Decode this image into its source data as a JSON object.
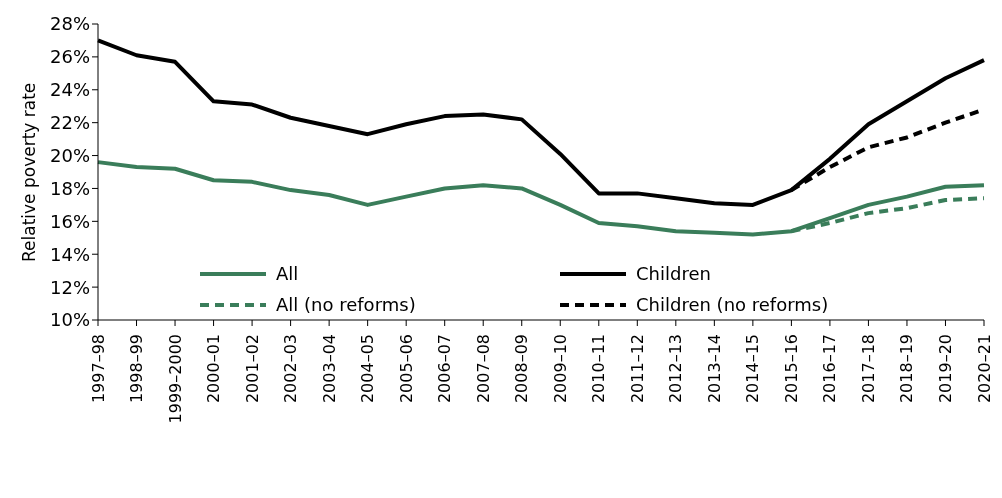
{
  "chart_data": {
    "type": "line",
    "ylabel": "Relative poverty rate",
    "categories": [
      "1997–98",
      "1998–99",
      "1999–2000",
      "2000–01",
      "2001–02",
      "2002–03",
      "2003–04",
      "2004–05",
      "2005–06",
      "2006–07",
      "2007–08",
      "2008–09",
      "2009–10",
      "2010–11",
      "2011–12",
      "2012–13",
      "2013–14",
      "2014–15",
      "2015–16",
      "2016–17",
      "2017–18",
      "2018–19",
      "2019–20",
      "2020–21"
    ],
    "ylim": [
      10,
      28
    ],
    "yticks": [
      {
        "value": 10,
        "label": "10%"
      },
      {
        "value": 12,
        "label": "12%"
      },
      {
        "value": 14,
        "label": "14%"
      },
      {
        "value": 16,
        "label": "16%"
      },
      {
        "value": 18,
        "label": "18%"
      },
      {
        "value": 20,
        "label": "20%"
      },
      {
        "value": 22,
        "label": "22%"
      },
      {
        "value": 24,
        "label": "24%"
      },
      {
        "value": 26,
        "label": "26%"
      },
      {
        "value": 28,
        "label": "28%"
      }
    ],
    "legend": "bottom",
    "marker": "none",
    "series": [
      {
        "name": "All",
        "color": "#3a7d5a",
        "line_style": "solid",
        "values": [
          19.6,
          19.3,
          19.2,
          18.5,
          18.4,
          17.9,
          17.6,
          17.0,
          17.5,
          18.0,
          18.2,
          18.0,
          17.0,
          15.9,
          15.7,
          15.4,
          15.3,
          15.2,
          15.4,
          16.2,
          17.0,
          17.5,
          18.1,
          18.2
        ]
      },
      {
        "name": "Children",
        "color": "#000000",
        "line_style": "solid",
        "values": [
          27.0,
          26.1,
          25.7,
          23.3,
          23.1,
          22.3,
          21.8,
          21.3,
          21.9,
          22.4,
          22.5,
          22.2,
          20.1,
          17.7,
          17.7,
          17.4,
          17.1,
          17.0,
          17.9,
          19.8,
          21.9,
          23.3,
          24.7,
          25.8
        ]
      },
      {
        "name": "All (no reforms)",
        "color": "#3a7d5a",
        "line_style": "dashed",
        "values": [
          null,
          null,
          null,
          null,
          null,
          null,
          null,
          null,
          null,
          null,
          null,
          null,
          null,
          null,
          null,
          null,
          null,
          null,
          15.4,
          15.9,
          16.5,
          16.8,
          17.3,
          17.4
        ]
      },
      {
        "name": "Children (no reforms)",
        "color": "#000000",
        "line_style": "dashed",
        "values": [
          null,
          null,
          null,
          null,
          null,
          null,
          null,
          null,
          null,
          null,
          null,
          null,
          null,
          null,
          null,
          null,
          null,
          null,
          17.9,
          19.3,
          20.5,
          21.1,
          22.0,
          22.8
        ]
      }
    ]
  }
}
